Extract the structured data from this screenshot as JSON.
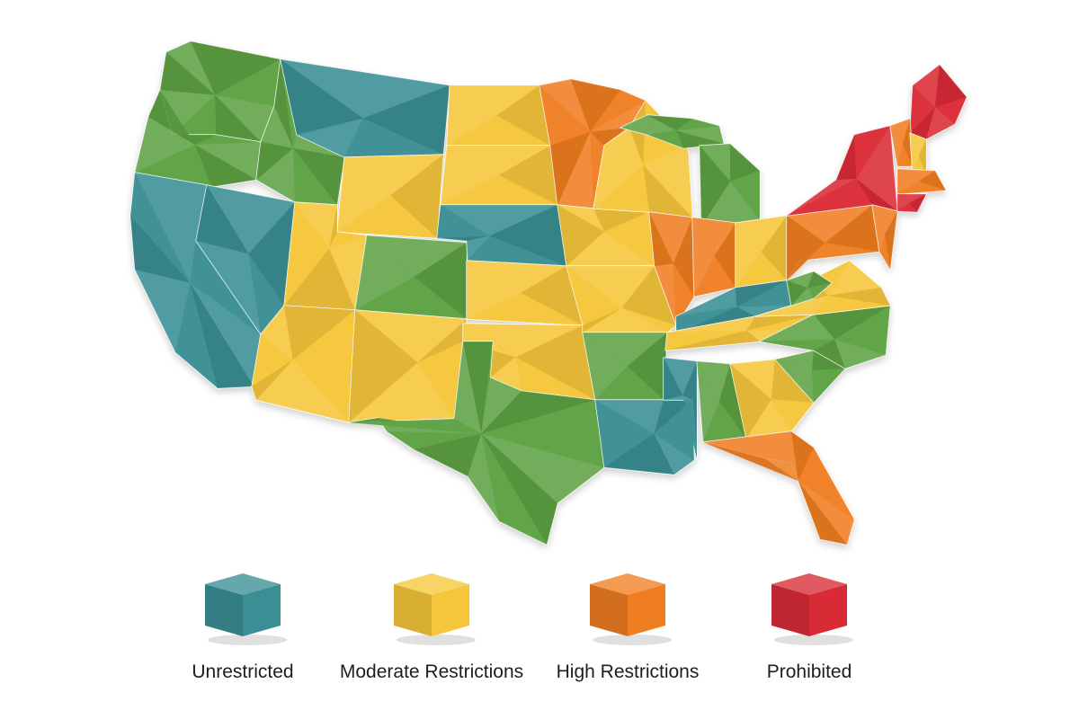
{
  "map": {
    "region": "United States",
    "colors": {
      "unrestricted": "#3a8f94",
      "moderate": "#f6c63a",
      "high": "#ef7d22",
      "prohibited": "#d92b35",
      "green": "#5da244"
    },
    "states": [
      {
        "id": "WA",
        "color": "green"
      },
      {
        "id": "OR",
        "color": "green"
      },
      {
        "id": "CA",
        "color": "unrestricted"
      },
      {
        "id": "NV",
        "color": "unrestricted"
      },
      {
        "id": "ID",
        "color": "green"
      },
      {
        "id": "MT",
        "color": "unrestricted"
      },
      {
        "id": "WY",
        "color": "moderate"
      },
      {
        "id": "UT",
        "color": "moderate"
      },
      {
        "id": "AZ",
        "color": "moderate"
      },
      {
        "id": "CO",
        "color": "green"
      },
      {
        "id": "NM",
        "color": "moderate"
      },
      {
        "id": "ND",
        "color": "moderate"
      },
      {
        "id": "SD",
        "color": "moderate"
      },
      {
        "id": "NE",
        "color": "unrestricted"
      },
      {
        "id": "KS",
        "color": "moderate"
      },
      {
        "id": "OK",
        "color": "moderate"
      },
      {
        "id": "TX",
        "color": "green"
      },
      {
        "id": "MN",
        "color": "high"
      },
      {
        "id": "IA",
        "color": "moderate"
      },
      {
        "id": "MO",
        "color": "moderate"
      },
      {
        "id": "AR",
        "color": "green"
      },
      {
        "id": "LA",
        "color": "unrestricted"
      },
      {
        "id": "WI",
        "color": "moderate"
      },
      {
        "id": "UP",
        "color": "green"
      },
      {
        "id": "MI",
        "color": "green"
      },
      {
        "id": "IL",
        "color": "high"
      },
      {
        "id": "IN",
        "color": "high"
      },
      {
        "id": "OH",
        "color": "moderate"
      },
      {
        "id": "KY",
        "color": "unrestricted"
      },
      {
        "id": "TN",
        "color": "moderate"
      },
      {
        "id": "MS",
        "color": "unrestricted"
      },
      {
        "id": "AL",
        "color": "green"
      },
      {
        "id": "GA",
        "color": "moderate"
      },
      {
        "id": "FL",
        "color": "high"
      },
      {
        "id": "SC",
        "color": "green"
      },
      {
        "id": "NC",
        "color": "green"
      },
      {
        "id": "VA",
        "color": "moderate"
      },
      {
        "id": "WV",
        "color": "green"
      },
      {
        "id": "PA",
        "color": "high"
      },
      {
        "id": "NY",
        "color": "prohibited"
      },
      {
        "id": "NJ",
        "color": "high"
      },
      {
        "id": "ME",
        "color": "prohibited"
      },
      {
        "id": "VT",
        "color": "high"
      },
      {
        "id": "NH",
        "color": "moderate"
      },
      {
        "id": "MA",
        "color": "high"
      },
      {
        "id": "CT",
        "color": "prohibited"
      }
    ]
  },
  "legend": [
    {
      "key": "unrestricted",
      "label": "Unrestricted",
      "color": "#3a8f94"
    },
    {
      "key": "moderate",
      "label": "Moderate Restrictions",
      "color": "#f6c63a"
    },
    {
      "key": "high",
      "label": "High Restrictions",
      "color": "#ef7d22"
    },
    {
      "key": "prohibited",
      "label": "Prohibited",
      "color": "#d92b35"
    }
  ]
}
